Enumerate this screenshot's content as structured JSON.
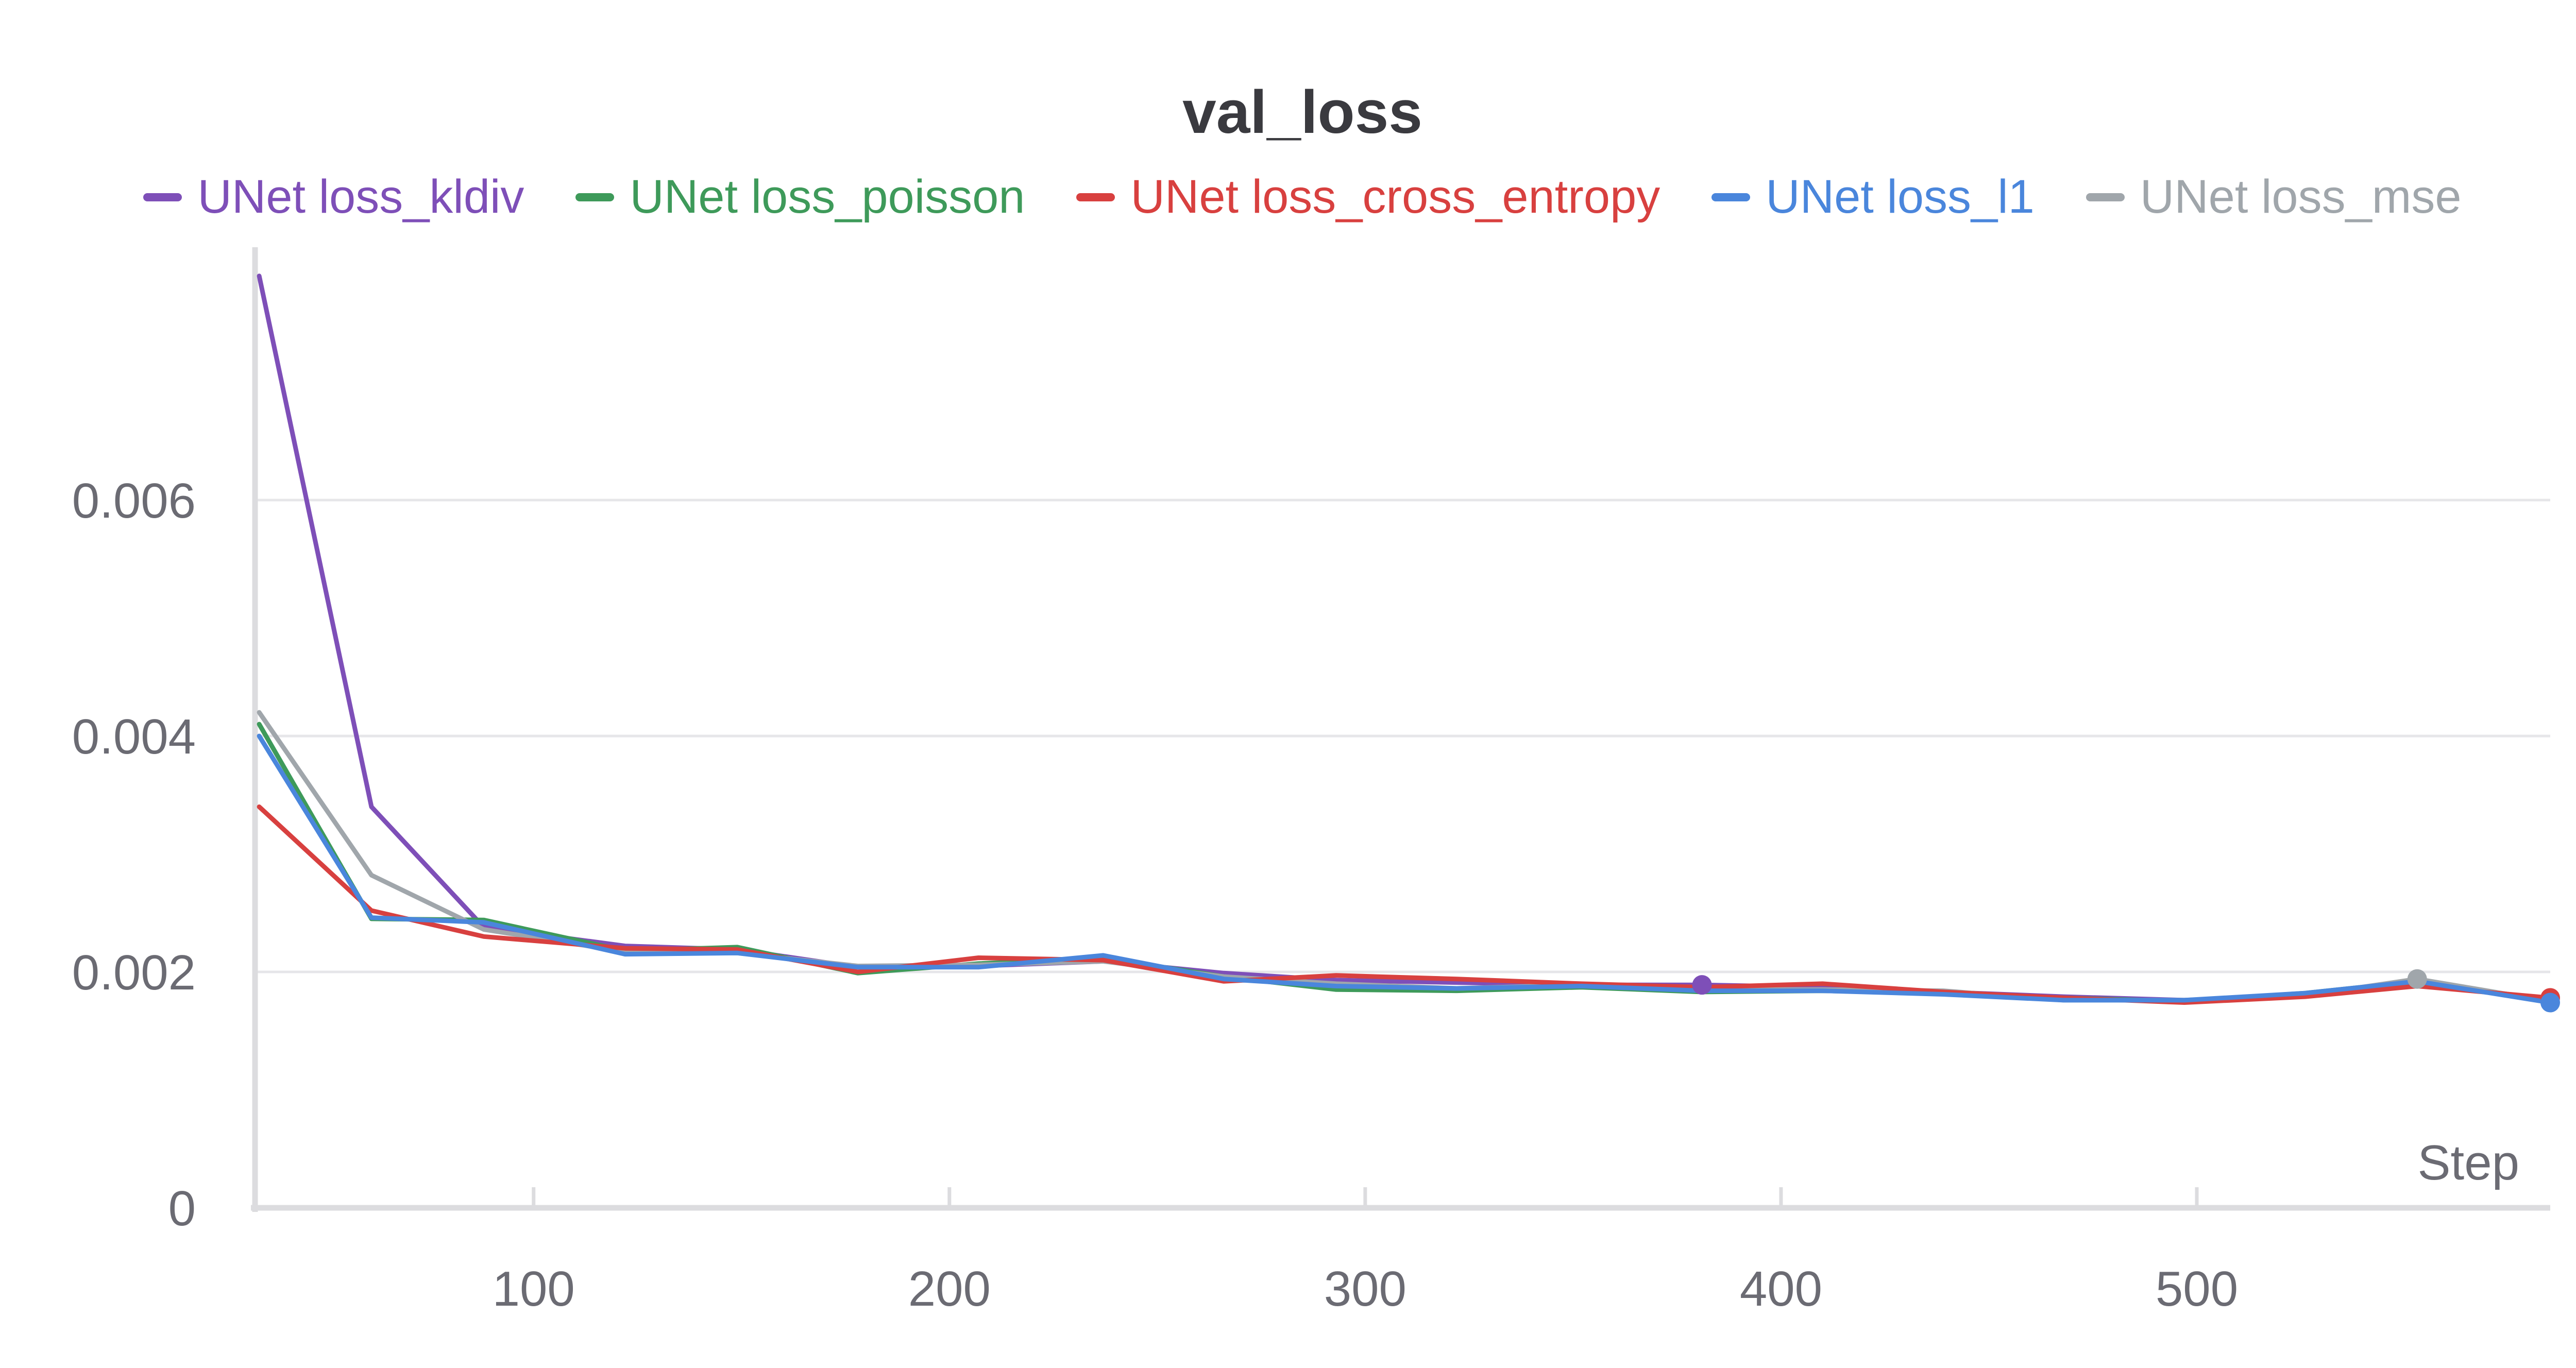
{
  "chart_data": {
    "type": "line",
    "title": "val_loss",
    "xlabel": "Step",
    "ylabel": "",
    "xlim": [
      33,
      585
    ],
    "ylim": [
      0,
      0.0081
    ],
    "x_ticks": [
      100,
      200,
      300,
      400,
      500
    ],
    "x_tick_labels": [
      "100",
      "200",
      "300",
      "400",
      "500"
    ],
    "y_ticks": [
      0,
      0.002,
      0.004,
      0.006
    ],
    "y_tick_labels": [
      "0",
      "0.002",
      "0.004",
      "0.006"
    ],
    "grid": true,
    "legend_position": "top-center",
    "x": [
      34,
      61,
      88,
      122,
      149,
      178,
      207,
      237,
      266,
      293,
      322,
      352,
      381,
      410,
      439,
      468,
      497,
      526,
      553,
      585
    ],
    "series": [
      {
        "name": "UNet loss_kldiv",
        "color": "#7e4fb8",
        "values": [
          0.0079,
          0.0034,
          0.00238,
          0.00222,
          0.00219,
          0.00204,
          0.00205,
          0.00209,
          0.00199,
          0.00193,
          0.00191,
          0.00189,
          0.00189,
          0.00187,
          0.00183,
          0.00179,
          0.00176,
          0.0018,
          0.00192,
          0.00176
        ],
        "end_marker": null,
        "point_marker": 381
      },
      {
        "name": "UNet loss_poisson",
        "color": "#3e9a5a",
        "values": [
          0.0041,
          0.00245,
          0.00244,
          0.00218,
          0.00221,
          0.00199,
          0.00207,
          0.00212,
          0.00196,
          0.00185,
          0.00184,
          0.00187,
          0.00183,
          0.00184,
          0.00182,
          0.00178,
          0.00175,
          0.00182,
          0.00192,
          0.00175
        ],
        "end_marker": null,
        "point_marker": null
      },
      {
        "name": "UNet loss_cross_entropy",
        "color": "#d8403f",
        "values": [
          0.0034,
          0.00252,
          0.0023,
          0.0022,
          0.00219,
          0.002,
          0.00212,
          0.0021,
          0.00192,
          0.00197,
          0.00194,
          0.0019,
          0.00187,
          0.0019,
          0.00183,
          0.00178,
          0.00174,
          0.00179,
          0.00188,
          0.00178
        ],
        "end_marker": 585,
        "point_marker": null
      },
      {
        "name": "UNet loss_l1",
        "color": "#4a86dc",
        "values": [
          0.004,
          0.00246,
          0.00242,
          0.00215,
          0.00216,
          0.00204,
          0.00204,
          0.00214,
          0.00194,
          0.00188,
          0.00186,
          0.00188,
          0.00184,
          0.00184,
          0.00181,
          0.00176,
          0.00176,
          0.00182,
          0.00192,
          0.00174
        ],
        "end_marker": 585,
        "point_marker": null
      },
      {
        "name": "UNet loss_mse",
        "color": "#a0a6ab",
        "values": [
          0.0042,
          0.00282,
          0.00236,
          0.00217,
          0.00216,
          0.00205,
          0.00206,
          0.00209,
          0.00196,
          0.0019,
          0.00186,
          0.00189,
          0.00185,
          0.00185,
          0.00184,
          0.00176,
          0.00176,
          0.0018,
          0.00194,
          0.00175
        ],
        "end_marker": null,
        "point_marker": 553
      }
    ]
  }
}
